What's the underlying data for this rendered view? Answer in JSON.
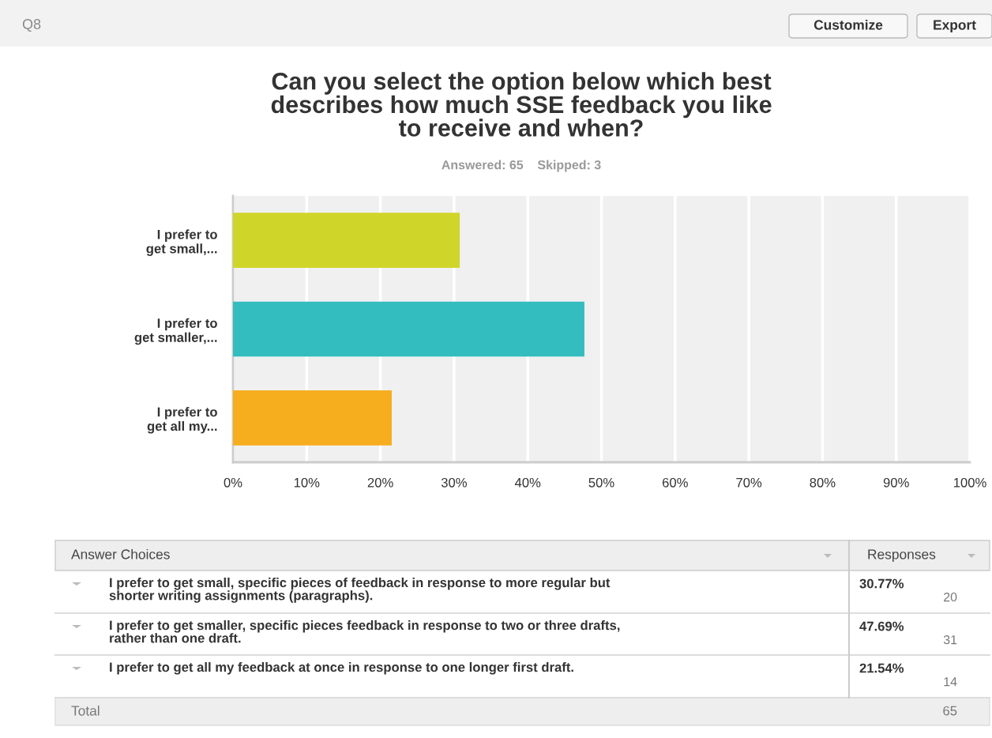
{
  "chart_data": {
    "type": "bar",
    "orientation": "horizontal",
    "title": "Can you select the option below which best\ndescribes how much SSE feedback you like\nto receive and when?",
    "subtitle": "Answered: 65    Skipped: 3",
    "categories": [
      "I prefer to\nget small,...",
      "I prefer to\nget smaller,...",
      "I prefer to\nget all my..."
    ],
    "values": [
      30.77,
      47.69,
      21.54
    ],
    "colors": [
      "#d0d52a",
      "#33bdbf",
      "#f6ae1f"
    ],
    "xlim": [
      0,
      100
    ],
    "xticks": [
      {
        "value": 0,
        "label": "0%"
      },
      {
        "value": 10,
        "label": "10%"
      },
      {
        "value": 20,
        "label": "20%"
      },
      {
        "value": 30,
        "label": "30%"
      },
      {
        "value": 40,
        "label": "40%"
      },
      {
        "value": 50,
        "label": "50%"
      },
      {
        "value": 60,
        "label": "60%"
      },
      {
        "value": 70,
        "label": "70%"
      },
      {
        "value": 80,
        "label": "80%"
      },
      {
        "value": 90,
        "label": "90%"
      },
      {
        "value": 100,
        "label": "100%"
      }
    ],
    "grid": "x",
    "annotations": [
      "Q8",
      "Customize",
      "Export",
      "Answer Choices",
      "Responses",
      "I prefer to get small, specific pieces of feedback in response to more regular but\nshorter writing assignments (paragraphs).",
      "I prefer to get smaller, specific pieces feedback in response to two or three drafts,\nrather than one draft.",
      "I prefer to get all my feedback at once in response to one longer first draft.",
      "20",
      "31",
      "14",
      "Total",
      "65",
      "30.77%",
      "47.69%",
      "21.54%"
    ]
  }
}
